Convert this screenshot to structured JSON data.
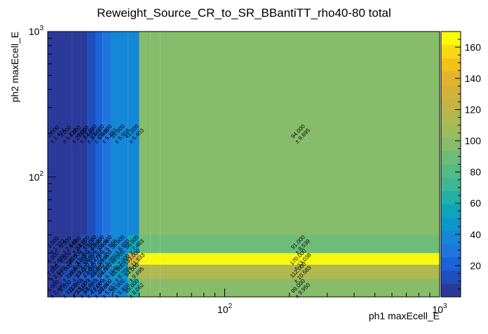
{
  "chart_data": {
    "type": "heatmap",
    "title": "Reweight_Source_CR_to_SR_BBantiTT_rho40-80 total",
    "xlabel": "ph1 maxEcell_E",
    "ylabel": "ph2 maxEcell_E",
    "x_scale": "log",
    "y_scale": "log",
    "xlim": [
      15,
      1000
    ],
    "ylim": [
      15,
      1000
    ],
    "x_ticks": [
      {
        "value": 100,
        "base": "10",
        "exp": "2"
      },
      {
        "value": 1000,
        "base": "10",
        "exp": "3"
      }
    ],
    "y_ticks": [
      {
        "value": 100,
        "base": "10",
        "exp": "2"
      },
      {
        "value": 1000,
        "base": "10",
        "exp": "3"
      }
    ],
    "x_bins": [
      15,
      17.5,
      19.5,
      21.5,
      23,
      25,
      27,
      29.5,
      35.5,
      40,
      45,
      50,
      1000
    ],
    "y_bins": [
      15,
      20,
      25,
      30,
      40,
      1000
    ],
    "colorbar": {
      "min": 0,
      "max": 170,
      "ticks": [
        20,
        40,
        60,
        80,
        100,
        120,
        140,
        160
      ],
      "palette": [
        "#2b3a9a",
        "#1f4fbd",
        "#1a63d8",
        "#1f75de",
        "#1487d6",
        "#0b97c9",
        "#0ea5b8",
        "#23b0a6",
        "#3db795",
        "#54bb86",
        "#6dbd78",
        "#86bc6a",
        "#9cbb5d",
        "#b1b850",
        "#c3b545",
        "#d4b23a",
        "#e4b32d",
        "#f2c21b",
        "#f9d814",
        "#f9f90e"
      ]
    },
    "cells": [
      {
        "xi": 0,
        "yi": 0,
        "v": 6,
        "err": 2.449,
        "v_label": "6.000",
        "err_label": "± 2.449"
      },
      {
        "xi": 1,
        "yi": 0,
        "v": 9,
        "err": 3.0,
        "v_label": "9.000",
        "err_label": "± 3.000"
      },
      {
        "xi": 2,
        "yi": 0,
        "v": 11,
        "err": 3.317,
        "v_label": "11.000",
        "err_label": "± 3.317"
      },
      {
        "xi": 3,
        "yi": 0,
        "v": 15,
        "err": 3.873,
        "v_label": "15.000",
        "err_label": "± 3.873"
      },
      {
        "xi": 4,
        "yi": 0,
        "v": 18,
        "err": 4.243,
        "v_label": "18.000",
        "err_label": "± 4.243"
      },
      {
        "xi": 5,
        "yi": 0,
        "v": 24,
        "err": 4.899,
        "v_label": "24.000",
        "err_label": "± 4.899"
      },
      {
        "xi": 6,
        "yi": 0,
        "v": 32,
        "err": 5.657,
        "v_label": "32.000",
        "err_label": "± 5.657"
      },
      {
        "xi": 7,
        "yi": 0,
        "v": 35,
        "err": 5.916,
        "v_label": "35.000",
        "err_label": "± 5.916"
      },
      {
        "xi": 8,
        "yi": 0,
        "v": 65,
        "err": 8.062,
        "v_label": "65.000",
        "err_label": "± 8.062"
      },
      {
        "xi": 9,
        "yi": 0,
        "v": 99,
        "err": 9.95,
        "v_label": "99.000",
        "err_label": "± 9.950"
      },
      {
        "xi": 10,
        "yi": 0,
        "v": 99,
        "err": 9.95,
        "v_label": "99.000",
        "err_label": "± 9.950"
      },
      {
        "xi": 11,
        "yi": 0,
        "v": 99,
        "err": 9.95,
        "v_label": "99.000",
        "err_label": "± 9.950"
      },
      {
        "xi": 0,
        "yi": 1,
        "v": 7,
        "err": 2.646,
        "v_label": "7.000",
        "err_label": "± 2.646"
      },
      {
        "xi": 1,
        "yi": 1,
        "v": 12,
        "err": 3.464,
        "v_label": "12.000",
        "err_label": "± 3.464"
      },
      {
        "xi": 2,
        "yi": 1,
        "v": 14,
        "err": 3.742,
        "v_label": "14.000",
        "err_label": "± 3.742"
      },
      {
        "xi": 3,
        "yi": 1,
        "v": 19,
        "err": 4.359,
        "v_label": "19.000",
        "err_label": "± 4.359"
      },
      {
        "xi": 4,
        "yi": 1,
        "v": 22,
        "err": 4.69,
        "v_label": "22.000",
        "err_label": "± 4.690"
      },
      {
        "xi": 5,
        "yi": 1,
        "v": 30,
        "err": 5.477,
        "v_label": "30.000",
        "err_label": "± 5.477"
      },
      {
        "xi": 6,
        "yi": 1,
        "v": 38,
        "err": 6.164,
        "v_label": "38.000",
        "err_label": "± 6.164"
      },
      {
        "xi": 7,
        "yi": 1,
        "v": 45,
        "err": 6.708,
        "v_label": "45.000",
        "err_label": "± 6.708"
      },
      {
        "xi": 8,
        "yi": 1,
        "v": 94,
        "err": 9.695,
        "v_label": "94.000",
        "err_label": "± 9.695"
      },
      {
        "xi": 9,
        "yi": 1,
        "v": 112,
        "err": 10.583,
        "v_label": "112.000",
        "err_label": "± 10.583"
      },
      {
        "xi": 10,
        "yi": 1,
        "v": 112,
        "err": 10.583,
        "v_label": "112.000",
        "err_label": "± 10.583"
      },
      {
        "xi": 11,
        "yi": 1,
        "v": 112,
        "err": 10.583,
        "v_label": "112.000",
        "err_label": "± 10.583"
      },
      {
        "xi": 0,
        "yi": 2,
        "v": 6,
        "err": 2.449,
        "v_label": "6.000",
        "err_label": "± 2.449"
      },
      {
        "xi": 1,
        "yi": 2,
        "v": 8,
        "err": 2.828,
        "v_label": "8.000",
        "err_label": "± 2.828"
      },
      {
        "xi": 2,
        "yi": 2,
        "v": 10,
        "err": 3.162,
        "v_label": "10.000",
        "err_label": "± 3.162"
      },
      {
        "xi": 3,
        "yi": 2,
        "v": 13,
        "err": 3.606,
        "v_label": "13.000",
        "err_label": "± 3.606"
      },
      {
        "xi": 4,
        "yi": 2,
        "v": 20,
        "err": 4.472,
        "v_label": "20.000",
        "err_label": "± 4.472"
      },
      {
        "xi": 5,
        "yi": 2,
        "v": 27,
        "err": 5.196,
        "v_label": "27.000",
        "err_label": "± 5.196"
      },
      {
        "xi": 6,
        "yi": 2,
        "v": 36,
        "err": 6.0,
        "v_label": "36.000",
        "err_label": "± 6.000"
      },
      {
        "xi": 7,
        "yi": 2,
        "v": 49,
        "err": 7.0,
        "v_label": "49.000",
        "err_label": "± 7.000"
      },
      {
        "xi": 8,
        "yi": 2,
        "v": 133,
        "err": 11.533,
        "v_label": "133.000",
        "err_label": "± 11.533"
      },
      {
        "xi": 9,
        "yi": 2,
        "v": 170,
        "err": 13.038,
        "v_label": "170.000",
        "err_label": "± 13.038"
      },
      {
        "xi": 10,
        "yi": 2,
        "v": 170,
        "err": 13.038,
        "v_label": "170.000",
        "err_label": "± 13.038"
      },
      {
        "xi": 11,
        "yi": 2,
        "v": 170,
        "err": 13.038,
        "v_label": "170.000",
        "err_label": "± 13.038"
      },
      {
        "xi": 0,
        "yi": 3,
        "v": 3,
        "err": 1.732,
        "v_label": "3.000",
        "err_label": "± 1.732"
      },
      {
        "xi": 1,
        "yi": 3,
        "v": 6,
        "err": 2.449,
        "v_label": "6.000",
        "err_label": "± 2.449"
      },
      {
        "xi": 2,
        "yi": 3,
        "v": 8,
        "err": 2.828,
        "v_label": "8.000",
        "err_label": "± 2.828"
      },
      {
        "xi": 3,
        "yi": 3,
        "v": 11,
        "err": 3.317,
        "v_label": "11.000",
        "err_label": "± 3.317"
      },
      {
        "xi": 4,
        "yi": 3,
        "v": 16,
        "err": 4.0,
        "v_label": "16.000",
        "err_label": "± 4.000"
      },
      {
        "xi": 5,
        "yi": 3,
        "v": 25,
        "err": 5.0,
        "v_label": "25.000",
        "err_label": "± 5.000"
      },
      {
        "xi": 6,
        "yi": 3,
        "v": 31,
        "err": 5.568,
        "v_label": "31.000",
        "err_label": "± 5.568"
      },
      {
        "xi": 7,
        "yi": 3,
        "v": 36,
        "err": 6.0,
        "v_label": "36.000",
        "err_label": "± 6.000"
      },
      {
        "xi": 8,
        "yi": 3,
        "v": 56,
        "err": 7.483,
        "v_label": "56.000",
        "err_label": "± 7.483"
      },
      {
        "xi": 9,
        "yi": 3,
        "v": 91,
        "err": 9.539,
        "v_label": "91.000",
        "err_label": "± 9.539"
      },
      {
        "xi": 10,
        "yi": 3,
        "v": 91,
        "err": 9.539,
        "v_label": "91.000",
        "err_label": "± 9.539"
      },
      {
        "xi": 11,
        "yi": 3,
        "v": 91,
        "err": 9.539,
        "v_label": "91.000",
        "err_label": "± 9.539"
      },
      {
        "xi": 0,
        "yi": 4,
        "v": 2,
        "err": 1.414,
        "v_label": "2.000",
        "err_label": "± 1.414"
      },
      {
        "xi": 1,
        "yi": 4,
        "v": 3,
        "err": 1.732,
        "v_label": "3.000",
        "err_label": "± 1.732"
      },
      {
        "xi": 2,
        "yi": 4,
        "v": 4,
        "err": 2.0,
        "v_label": "4.000",
        "err_label": "± 2.000"
      },
      {
        "xi": 3,
        "yi": 4,
        "v": 6,
        "err": 2.449,
        "v_label": "6.000",
        "err_label": "± 2.449"
      },
      {
        "xi": 4,
        "yi": 4,
        "v": 12,
        "err": 3.464,
        "v_label": "12.000",
        "err_label": "± 3.464"
      },
      {
        "xi": 5,
        "yi": 4,
        "v": 25,
        "err": 5.0,
        "v_label": "25.000",
        "err_label": "± 5.000"
      },
      {
        "xi": 6,
        "yi": 4,
        "v": 28,
        "err": 5.292,
        "v_label": "28.000",
        "err_label": "± 5.292"
      },
      {
        "xi": 7,
        "yi": 4,
        "v": 35,
        "err": 5.916,
        "v_label": "35.000",
        "err_label": "± 5.916"
      },
      {
        "xi": 8,
        "yi": 4,
        "v": 41,
        "err": 6.403,
        "v_label": "41.000",
        "err_label": "± 6.403"
      },
      {
        "xi": 9,
        "yi": 4,
        "v": 94,
        "err": 9.695,
        "v_label": "94.000",
        "err_label": "± 9.695"
      },
      {
        "xi": 10,
        "yi": 4,
        "v": 94,
        "err": 9.695,
        "v_label": "94.000",
        "err_label": "± 9.695"
      },
      {
        "xi": 11,
        "yi": 4,
        "v": 94,
        "err": 9.695,
        "v_label": "94.000",
        "err_label": "± 9.695"
      }
    ],
    "labeled_columns": [
      0,
      1,
      2,
      3,
      4,
      5,
      6,
      7,
      8,
      11
    ]
  }
}
